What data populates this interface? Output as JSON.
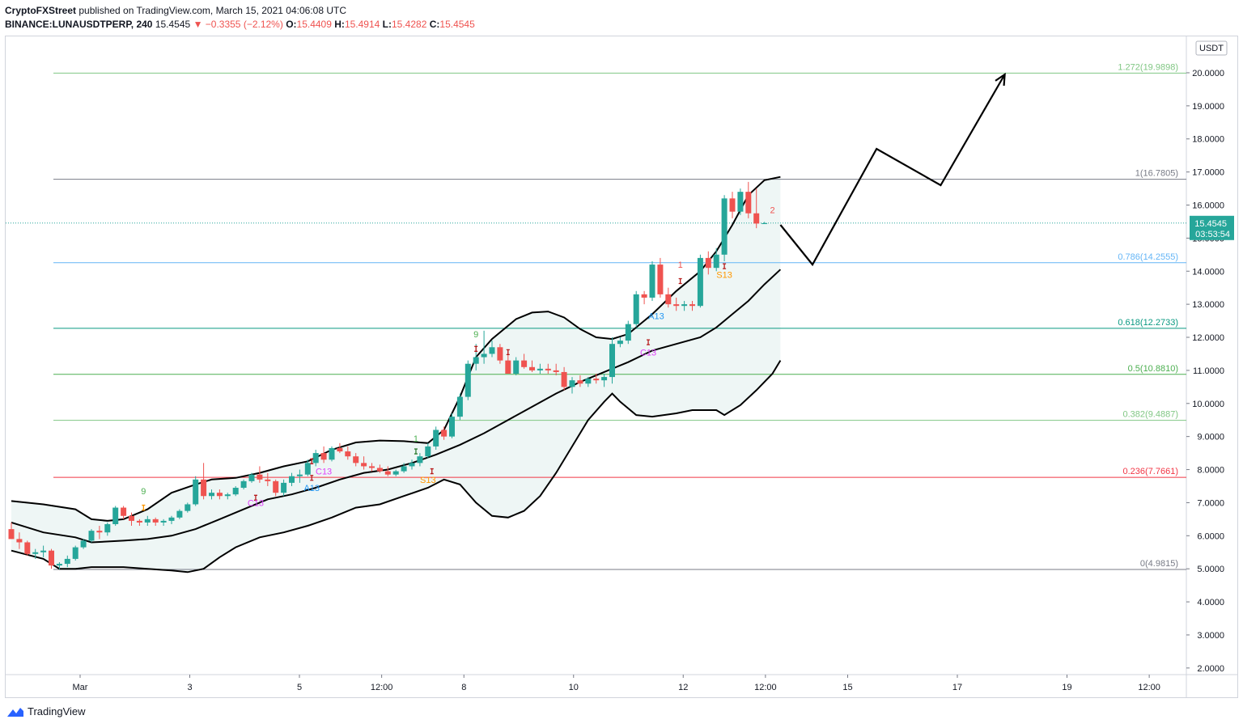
{
  "header": {
    "line1_publisher": "CryptoFXStreet",
    "line1_rest": " published on TradingView.com, March 15, 2021 04:06:08 UTC",
    "symbol": "BINANCE:LUNAUSDTPERP, 240",
    "price": "15.4545",
    "change": "▼ −0.3355 (−2.12%)",
    "open_label": "O:",
    "open": "15.4409",
    "high_label": "H:",
    "high": "15.4914",
    "low_label": "L:",
    "low": "15.4282",
    "close_label": "C:",
    "close": "15.4545"
  },
  "footer": {
    "brand": "TradingView"
  },
  "colors": {
    "up": "#26a69a",
    "down": "#ef5350",
    "band_fill": "#eef6f5",
    "line": "#000000"
  },
  "chart_data": {
    "type": "candlestick",
    "currency": "USDT",
    "y_ticks": [
      "20.0000",
      "19.0000",
      "18.0000",
      "17.0000",
      "16.0000",
      "15.0000",
      "14.0000",
      "13.0000",
      "12.0000",
      "11.0000",
      "10.0000",
      "9.0000",
      "8.0000",
      "7.0000",
      "6.0000",
      "5.0000",
      "4.0000",
      "3.0000",
      "2.0000"
    ],
    "ylim": [
      1.8,
      21.1
    ],
    "x_ticks": [
      {
        "label": "Mar",
        "day": 1
      },
      {
        "label": "3",
        "day": 3
      },
      {
        "label": "5",
        "day": 5
      },
      {
        "label": "12:00",
        "day": 6.5
      },
      {
        "label": "8",
        "day": 8
      },
      {
        "label": "10",
        "day": 10
      },
      {
        "label": "12",
        "day": 12
      },
      {
        "label": "12:00",
        "day": 13.5
      },
      {
        "label": "15",
        "day": 15
      },
      {
        "label": "17",
        "day": 17
      },
      {
        "label": "19",
        "day": 19
      },
      {
        "label": "12:00",
        "day": 20.5
      }
    ],
    "last_price": {
      "value": 15.4545,
      "label": "15.4545",
      "countdown": "03:53:54"
    },
    "fib_levels": [
      {
        "label": "1.272(19.9898)",
        "value": 19.9898,
        "color": "#81c784"
      },
      {
        "label": "1(16.7805)",
        "value": 16.7805,
        "color": "#787b86"
      },
      {
        "label": "0.786(14.2555)",
        "value": 14.2555,
        "color": "#64b5f6"
      },
      {
        "label": "0.618(12.2733)",
        "value": 12.2733,
        "color": "#089981"
      },
      {
        "label": "0.5(10.8810)",
        "value": 10.881,
        "color": "#4caf50"
      },
      {
        "label": "0.382(9.4887)",
        "value": 9.4887,
        "color": "#81c784"
      },
      {
        "label": "0.236(7.7661)",
        "value": 7.7661,
        "color": "#f23645"
      },
      {
        "label": "0(4.9815)",
        "value": 4.9815,
        "color": "#787b86"
      }
    ],
    "candles": [
      [
        6.2,
        6.4,
        5.9,
        5.9
      ],
      [
        5.9,
        6.1,
        5.6,
        5.8
      ],
      [
        5.8,
        5.85,
        5.4,
        5.45
      ],
      [
        5.45,
        5.6,
        5.3,
        5.5
      ],
      [
        5.5,
        5.7,
        5.35,
        5.55
      ],
      [
        5.55,
        5.6,
        5.0,
        5.1
      ],
      [
        5.1,
        5.2,
        4.98,
        5.15
      ],
      [
        5.15,
        5.4,
        5.05,
        5.3
      ],
      [
        5.3,
        5.7,
        5.25,
        5.65
      ],
      [
        5.65,
        5.9,
        5.6,
        5.85
      ],
      [
        5.85,
        6.2,
        5.8,
        6.15
      ],
      [
        6.15,
        6.3,
        5.9,
        6.1
      ],
      [
        6.1,
        6.4,
        6.0,
        6.35
      ],
      [
        6.35,
        6.9,
        6.3,
        6.85
      ],
      [
        6.85,
        6.9,
        6.5,
        6.6
      ],
      [
        6.6,
        6.7,
        6.3,
        6.45
      ],
      [
        6.45,
        6.5,
        6.3,
        6.4
      ],
      [
        6.4,
        6.6,
        6.3,
        6.5
      ],
      [
        6.5,
        6.55,
        6.3,
        6.4
      ],
      [
        6.4,
        6.5,
        6.3,
        6.45
      ],
      [
        6.45,
        6.6,
        6.35,
        6.55
      ],
      [
        6.55,
        6.8,
        6.5,
        6.75
      ],
      [
        6.75,
        7.0,
        6.7,
        6.95
      ],
      [
        6.95,
        7.8,
        6.9,
        7.7
      ],
      [
        7.7,
        8.2,
        7.1,
        7.2
      ],
      [
        7.2,
        7.4,
        7.1,
        7.3
      ],
      [
        7.3,
        7.4,
        7.1,
        7.2
      ],
      [
        7.2,
        7.3,
        7.1,
        7.25
      ],
      [
        7.25,
        7.5,
        7.2,
        7.45
      ],
      [
        7.45,
        7.7,
        7.4,
        7.65
      ],
      [
        7.65,
        7.9,
        7.6,
        7.85
      ],
      [
        7.85,
        8.1,
        7.6,
        7.7
      ],
      [
        7.7,
        7.9,
        7.5,
        7.65
      ],
      [
        7.65,
        7.7,
        7.2,
        7.3
      ],
      [
        7.3,
        7.7,
        7.2,
        7.6
      ],
      [
        7.6,
        7.9,
        7.5,
        7.8
      ],
      [
        7.8,
        8.0,
        7.6,
        7.85
      ],
      [
        7.85,
        8.3,
        7.8,
        8.2
      ],
      [
        8.2,
        8.6,
        8.1,
        8.5
      ],
      [
        8.5,
        8.7,
        8.2,
        8.3
      ],
      [
        8.3,
        8.7,
        8.25,
        8.65
      ],
      [
        8.65,
        8.8,
        8.5,
        8.55
      ],
      [
        8.55,
        8.7,
        8.3,
        8.4
      ],
      [
        8.4,
        8.5,
        8.1,
        8.2
      ],
      [
        8.2,
        8.4,
        8.0,
        8.1
      ],
      [
        8.1,
        8.2,
        7.95,
        8.05
      ],
      [
        8.05,
        8.15,
        7.9,
        7.95
      ],
      [
        7.95,
        8.1,
        7.8,
        7.85
      ],
      [
        7.85,
        8.0,
        7.8,
        7.95
      ],
      [
        7.95,
        8.2,
        7.9,
        8.1
      ],
      [
        8.1,
        8.3,
        8.0,
        8.2
      ],
      [
        8.2,
        8.5,
        8.1,
        8.4
      ],
      [
        8.4,
        8.8,
        8.35,
        8.7
      ],
      [
        8.7,
        9.3,
        8.6,
        9.2
      ],
      [
        9.2,
        9.3,
        8.9,
        9.0
      ],
      [
        9.0,
        9.7,
        8.95,
        9.6
      ],
      [
        9.6,
        10.3,
        9.5,
        10.2
      ],
      [
        10.2,
        11.3,
        10.1,
        11.2
      ],
      [
        11.2,
        11.8,
        11.0,
        11.4
      ],
      [
        11.4,
        12.2,
        11.2,
        11.5
      ],
      [
        11.5,
        11.9,
        11.4,
        11.7
      ],
      [
        11.7,
        11.8,
        11.2,
        11.3
      ],
      [
        11.3,
        11.6,
        10.9,
        10.9
      ],
      [
        10.9,
        11.4,
        10.85,
        11.3
      ],
      [
        11.3,
        11.5,
        11.05,
        11.1
      ],
      [
        11.1,
        11.3,
        10.95,
        11.0
      ],
      [
        11.0,
        11.2,
        10.9,
        11.05
      ],
      [
        11.05,
        11.2,
        10.9,
        11.0
      ],
      [
        11.0,
        11.2,
        10.85,
        10.95
      ],
      [
        10.95,
        11.1,
        10.4,
        10.5
      ],
      [
        10.5,
        10.8,
        10.3,
        10.7
      ],
      [
        10.7,
        10.85,
        10.5,
        10.6
      ],
      [
        10.6,
        10.8,
        10.5,
        10.75
      ],
      [
        10.75,
        10.9,
        10.6,
        10.7
      ],
      [
        10.7,
        10.9,
        10.5,
        10.8
      ],
      [
        10.8,
        12.0,
        10.6,
        11.8
      ],
      [
        11.8,
        12.0,
        11.7,
        11.9
      ],
      [
        11.9,
        12.5,
        11.8,
        12.4
      ],
      [
        12.4,
        13.4,
        12.3,
        13.3
      ],
      [
        13.3,
        13.4,
        13.0,
        13.2
      ],
      [
        13.2,
        14.3,
        13.1,
        14.2
      ],
      [
        14.2,
        14.4,
        13.2,
        13.3
      ],
      [
        13.3,
        13.5,
        12.9,
        13.0
      ],
      [
        13.0,
        13.2,
        12.8,
        12.95
      ],
      [
        12.95,
        13.1,
        12.8,
        13.0
      ],
      [
        13.0,
        13.1,
        12.8,
        12.95
      ],
      [
        12.95,
        14.5,
        12.9,
        14.4
      ],
      [
        14.4,
        14.6,
        13.9,
        14.1
      ],
      [
        14.1,
        14.7,
        14.0,
        14.5
      ],
      [
        14.5,
        16.3,
        14.3,
        16.2
      ],
      [
        16.2,
        16.4,
        15.6,
        15.8
      ],
      [
        15.8,
        16.5,
        15.7,
        16.4
      ],
      [
        16.4,
        16.7,
        15.6,
        15.75
      ],
      [
        15.75,
        16.5,
        15.3,
        15.44
      ],
      [
        15.44,
        15.49,
        15.43,
        15.45
      ]
    ],
    "bollinger": {
      "upper": [
        [
          0,
          7.05
        ],
        [
          4,
          6.95
        ],
        [
          8,
          6.8
        ],
        [
          10,
          6.5
        ],
        [
          12,
          6.45
        ],
        [
          14,
          6.5
        ],
        [
          15,
          6.6
        ],
        [
          17,
          6.8
        ],
        [
          20,
          7.3
        ],
        [
          23,
          7.55
        ],
        [
          25,
          7.7
        ],
        [
          28,
          7.75
        ],
        [
          31,
          7.9
        ],
        [
          34,
          8.1
        ],
        [
          37,
          8.25
        ],
        [
          40,
          8.6
        ],
        [
          43,
          8.82
        ],
        [
          46,
          8.88
        ],
        [
          49,
          8.86
        ],
        [
          52,
          8.8
        ],
        [
          54,
          9.2
        ],
        [
          56,
          10.2
        ],
        [
          58,
          11.4
        ],
        [
          60,
          11.95
        ],
        [
          63,
          12.55
        ],
        [
          65,
          12.75
        ],
        [
          67,
          12.78
        ],
        [
          69,
          12.6
        ],
        [
          71,
          12.25
        ],
        [
          73,
          12.0
        ],
        [
          75,
          11.95
        ],
        [
          77,
          12.1
        ],
        [
          80,
          12.7
        ],
        [
          83,
          13.4
        ],
        [
          86,
          14.0
        ],
        [
          88,
          14.6
        ],
        [
          90,
          15.4
        ],
        [
          92,
          16.3
        ],
        [
          94,
          16.75
        ],
        [
          96,
          16.85
        ]
      ],
      "middle": [
        [
          0,
          6.4
        ],
        [
          4,
          6.1
        ],
        [
          8,
          5.95
        ],
        [
          10,
          5.8
        ],
        [
          14,
          5.85
        ],
        [
          17,
          5.9
        ],
        [
          20,
          6.0
        ],
        [
          23,
          6.2
        ],
        [
          26,
          6.5
        ],
        [
          29,
          6.8
        ],
        [
          32,
          7.1
        ],
        [
          35,
          7.25
        ],
        [
          38,
          7.45
        ],
        [
          41,
          7.7
        ],
        [
          44,
          7.9
        ],
        [
          47,
          8.0
        ],
        [
          50,
          8.2
        ],
        [
          53,
          8.45
        ],
        [
          56,
          8.75
        ],
        [
          59,
          9.1
        ],
        [
          62,
          9.5
        ],
        [
          65,
          9.9
        ],
        [
          68,
          10.3
        ],
        [
          71,
          10.65
        ],
        [
          74,
          10.95
        ],
        [
          77,
          11.25
        ],
        [
          80,
          11.6
        ],
        [
          83,
          11.8
        ],
        [
          86,
          12.0
        ],
        [
          88,
          12.3
        ],
        [
          90,
          12.7
        ],
        [
          92,
          13.1
        ],
        [
          94,
          13.6
        ],
        [
          96,
          14.05
        ]
      ],
      "lower": [
        [
          0,
          5.55
        ],
        [
          4,
          5.3
        ],
        [
          6,
          5.0
        ],
        [
          8,
          5.0
        ],
        [
          10,
          5.05
        ],
        [
          14,
          5.05
        ],
        [
          17,
          5.0
        ],
        [
          20,
          4.95
        ],
        [
          22,
          4.9
        ],
        [
          24,
          5.0
        ],
        [
          26,
          5.35
        ],
        [
          28,
          5.65
        ],
        [
          31,
          5.95
        ],
        [
          34,
          6.1
        ],
        [
          37,
          6.3
        ],
        [
          40,
          6.55
        ],
        [
          43,
          6.85
        ],
        [
          46,
          6.95
        ],
        [
          49,
          7.2
        ],
        [
          52,
          7.45
        ],
        [
          54,
          7.7
        ],
        [
          56,
          7.55
        ],
        [
          58,
          7.0
        ],
        [
          60,
          6.6
        ],
        [
          62,
          6.55
        ],
        [
          64,
          6.75
        ],
        [
          66,
          7.2
        ],
        [
          68,
          7.9
        ],
        [
          70,
          8.7
        ],
        [
          72,
          9.5
        ],
        [
          74,
          10.05
        ],
        [
          75,
          10.3
        ],
        [
          76,
          10.05
        ],
        [
          78,
          9.65
        ],
        [
          80,
          9.6
        ],
        [
          83,
          9.7
        ],
        [
          85,
          9.8
        ],
        [
          88,
          9.8
        ],
        [
          89,
          9.65
        ],
        [
          91,
          9.95
        ],
        [
          93,
          10.4
        ],
        [
          95,
          10.9
        ],
        [
          96,
          11.3
        ]
      ]
    },
    "projection": [
      [
        96,
        15.4
      ],
      [
        100,
        14.2
      ],
      [
        108,
        17.7
      ],
      [
        116,
        16.6
      ],
      [
        124,
        19.95
      ]
    ],
    "labels": [
      {
        "text": "9",
        "i": 16.5,
        "v": 7.25,
        "color": "#4caf50"
      },
      {
        "text": "C13",
        "i": 30.5,
        "v": 6.9,
        "color": "#e040fb"
      },
      {
        "text": "C13",
        "i": 39,
        "v": 7.85,
        "color": "#e040fb"
      },
      {
        "text": "A13",
        "i": 37.5,
        "v": 7.35,
        "color": "#2196f3"
      },
      {
        "text": "S13",
        "i": 52,
        "v": 7.6,
        "color": "#ff9800"
      },
      {
        "text": "9",
        "i": 58,
        "v": 12.0,
        "color": "#4caf50"
      },
      {
        "text": "A13",
        "i": 80.5,
        "v": 12.55,
        "color": "#2196f3"
      },
      {
        "text": "C13",
        "i": 79.5,
        "v": 11.45,
        "color": "#e040fb"
      },
      {
        "text": "S13",
        "i": 89,
        "v": 13.8,
        "color": "#ff9800"
      },
      {
        "text": "1",
        "i": 83.5,
        "v": 14.1,
        "color": "#ef5350"
      },
      {
        "text": "2",
        "i": 95,
        "v": 15.75,
        "color": "#ef5350"
      },
      {
        "text": "1",
        "i": 50.5,
        "v": 8.85,
        "color": "#4caf50"
      }
    ],
    "markers": [
      {
        "i": 16.5,
        "v": 6.85,
        "color": "#ff9800"
      },
      {
        "i": 30.5,
        "v": 7.15,
        "color": "#b71c1c"
      },
      {
        "i": 37.5,
        "v": 8.25,
        "color": "#b71c1c"
      },
      {
        "i": 37.5,
        "v": 7.75,
        "color": "#b71c1c"
      },
      {
        "i": 50.5,
        "v": 8.55,
        "color": "#2e7d32"
      },
      {
        "i": 52.5,
        "v": 7.95,
        "color": "#b71c1c"
      },
      {
        "i": 58,
        "v": 11.65,
        "color": "#b71c1c"
      },
      {
        "i": 62,
        "v": 11.55,
        "color": "#b71c1c"
      },
      {
        "i": 79.5,
        "v": 11.85,
        "color": "#b71c1c"
      },
      {
        "i": 83.5,
        "v": 13.7,
        "color": "#b71c1c"
      },
      {
        "i": 89,
        "v": 14.15,
        "color": "#b71c1c"
      }
    ]
  }
}
